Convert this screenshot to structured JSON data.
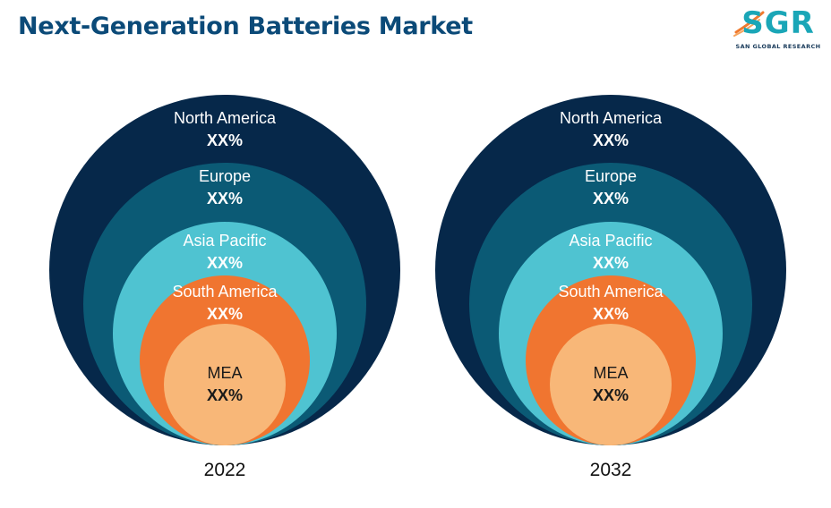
{
  "title": "Next-Generation Batteries Market",
  "logo": {
    "name": "SGR",
    "tagline": "SAN GLOBAL RESEARCH",
    "colors": {
      "primary": "#1aa6b7",
      "accent": "#f07a2e",
      "text": "#183a5a"
    }
  },
  "chart_data": [
    {
      "type": "nested-circles",
      "year": "2022",
      "segments": [
        {
          "region": "North America",
          "value": "XX%",
          "color": "#06284a",
          "text_color": "#ffffff"
        },
        {
          "region": "Europe",
          "value": "XX%",
          "color": "#0b5a75",
          "text_color": "#ffffff"
        },
        {
          "region": "Asia Pacific",
          "value": "XX%",
          "color": "#4fc3d1",
          "text_color": "#ffffff"
        },
        {
          "region": "South America",
          "value": "XX%",
          "color": "#f07530",
          "text_color": "#ffffff"
        },
        {
          "region": "MEA",
          "value": "XX%",
          "color": "#f8b778",
          "text_color": "#1a1a1a"
        }
      ]
    },
    {
      "type": "nested-circles",
      "year": "2032",
      "segments": [
        {
          "region": "North America",
          "value": "XX%",
          "color": "#06284a",
          "text_color": "#ffffff"
        },
        {
          "region": "Europe",
          "value": "XX%",
          "color": "#0b5a75",
          "text_color": "#ffffff"
        },
        {
          "region": "Asia Pacific",
          "value": "XX%",
          "color": "#4fc3d1",
          "text_color": "#ffffff"
        },
        {
          "region": "South America",
          "value": "XX%",
          "color": "#f07530",
          "text_color": "#ffffff"
        },
        {
          "region": "MEA",
          "value": "XX%",
          "color": "#f8b778",
          "text_color": "#1a1a1a"
        }
      ]
    }
  ]
}
